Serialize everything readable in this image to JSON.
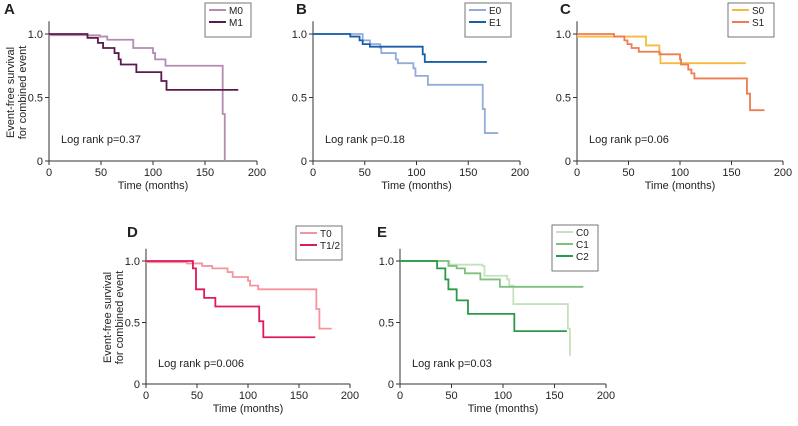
{
  "chart_data": [
    {
      "type": "line",
      "panel": "A",
      "xlabel": "Time (months)",
      "ylabel": [
        "Event-free survival",
        "for combined event"
      ],
      "xlim": [
        0,
        200
      ],
      "ylim": [
        0,
        1.1
      ],
      "xticks": [
        "0",
        "50",
        "100",
        "150",
        "200"
      ],
      "yticks": [
        "0",
        "0.5",
        "1.0"
      ],
      "annotation": "Log rank p=0.37",
      "legend_position": "top-right",
      "series": [
        {
          "name": "M0",
          "color": "#b38cb1",
          "points": [
            [
              0,
              0.99
            ],
            [
              49,
              0.98
            ],
            [
              56,
              0.955
            ],
            [
              81,
              0.89
            ],
            [
              100,
              0.85
            ],
            [
              102,
              0.8
            ],
            [
              112,
              0.75
            ],
            [
              167,
              0.37
            ],
            [
              169,
              0
            ]
          ]
        },
        {
          "name": "M1",
          "color": "#5b1a4c",
          "points": [
            [
              0,
              1.0
            ],
            [
              37,
              0.97
            ],
            [
              47,
              0.93
            ],
            [
              52,
              0.89
            ],
            [
              63,
              0.85
            ],
            [
              67,
              0.8
            ],
            [
              69,
              0.76
            ],
            [
              84,
              0.7
            ],
            [
              108,
              0.63
            ],
            [
              113,
              0.56
            ],
            [
              182,
              0.56
            ]
          ]
        }
      ]
    },
    {
      "type": "line",
      "panel": "B",
      "xlabel": "Time (months)",
      "xlim": [
        0,
        200
      ],
      "ylim": [
        0,
        1.1
      ],
      "xticks": [
        "0",
        "50",
        "100",
        "150",
        "200"
      ],
      "yticks": [
        "0",
        "0.5",
        "1.0"
      ],
      "annotation": "Log rank p=0.18",
      "legend_position": "top-right",
      "series": [
        {
          "name": "E0",
          "color": "#93abdb",
          "points": [
            [
              0,
              1.0
            ],
            [
              48,
              0.95
            ],
            [
              55,
              0.92
            ],
            [
              65,
              0.89
            ],
            [
              66,
              0.85
            ],
            [
              80,
              0.8
            ],
            [
              82,
              0.77
            ],
            [
              97,
              0.73
            ],
            [
              99,
              0.67
            ],
            [
              111,
              0.6
            ],
            [
              164,
              0.41
            ],
            [
              166,
              0.22
            ],
            [
              179,
              0.22
            ]
          ]
        },
        {
          "name": "E1",
          "color": "#1b5ea8",
          "points": [
            [
              0,
              1.0
            ],
            [
              36,
              0.98
            ],
            [
              45,
              0.95
            ],
            [
              48,
              0.92
            ],
            [
              55,
              0.9
            ],
            [
              106,
              0.84
            ],
            [
              108,
              0.78
            ],
            [
              168,
              0.78
            ]
          ]
        }
      ]
    },
    {
      "type": "line",
      "panel": "C",
      "xlabel": "Time (months)",
      "xlim": [
        0,
        200
      ],
      "ylim": [
        0,
        1.1
      ],
      "xticks": [
        "0",
        "50",
        "100",
        "150",
        "200"
      ],
      "yticks": [
        "0",
        "0.5",
        "1.0"
      ],
      "annotation": "Log rank p=0.06",
      "legend_position": "top-right",
      "series": [
        {
          "name": "S0",
          "color": "#f6ba3e",
          "points": [
            [
              0,
              0.98
            ],
            [
              67,
              0.91
            ],
            [
              80,
              0.85
            ],
            [
              81,
              0.77
            ],
            [
              164,
              0.77
            ]
          ]
        },
        {
          "name": "S1",
          "color": "#ef7b52",
          "points": [
            [
              0,
              1.0
            ],
            [
              36,
              0.98
            ],
            [
              46,
              0.95
            ],
            [
              49,
              0.92
            ],
            [
              53,
              0.89
            ],
            [
              60,
              0.86
            ],
            [
              80,
              0.84
            ],
            [
              100,
              0.8
            ],
            [
              101,
              0.76
            ],
            [
              108,
              0.72
            ],
            [
              111,
              0.69
            ],
            [
              114,
              0.65
            ],
            [
              165,
              0.53
            ],
            [
              168,
              0.4
            ],
            [
              182,
              0.4
            ]
          ]
        }
      ]
    },
    {
      "type": "line",
      "panel": "D",
      "xlabel": "Time (months)",
      "ylabel": [
        "Event-free survival",
        "for combined event"
      ],
      "xlim": [
        0,
        200
      ],
      "ylim": [
        0,
        1.1
      ],
      "xticks": [
        "0",
        "50",
        "100",
        "150",
        "200"
      ],
      "yticks": [
        "0",
        "0.5",
        "1.0"
      ],
      "annotation": "Log rank p=0.006",
      "legend_position": "top-right",
      "series": [
        {
          "name": "T0",
          "color": "#f4959c",
          "points": [
            [
              0,
              0.99
            ],
            [
              40,
              0.98
            ],
            [
              55,
              0.96
            ],
            [
              65,
              0.94
            ],
            [
              80,
              0.91
            ],
            [
              85,
              0.87
            ],
            [
              100,
              0.84
            ],
            [
              102,
              0.8
            ],
            [
              110,
              0.77
            ],
            [
              167,
              0.61
            ],
            [
              170,
              0.45
            ],
            [
              182,
              0.45
            ]
          ]
        },
        {
          "name": "T1/2",
          "color": "#e0195b",
          "points": [
            [
              0,
              1.0
            ],
            [
              46,
              0.94
            ],
            [
              49,
              0.77
            ],
            [
              57,
              0.7
            ],
            [
              68,
              0.63
            ],
            [
              111,
              0.51
            ],
            [
              115,
              0.38
            ],
            [
              166,
              0.38
            ]
          ]
        }
      ]
    },
    {
      "type": "line",
      "panel": "E",
      "xlabel": "Time (months)",
      "xlim": [
        0,
        200
      ],
      "ylim": [
        0,
        1.1
      ],
      "xticks": [
        "0",
        "50",
        "100",
        "150",
        "200"
      ],
      "yticks": [
        "0",
        "0.5",
        "1.0"
      ],
      "annotation": "Log rank p=0.03",
      "legend_position": "top-right",
      "series": [
        {
          "name": "C0",
          "color": "#c5e2bd",
          "points": [
            [
              0,
              1.0
            ],
            [
              48,
              0.97
            ],
            [
              80,
              0.96
            ],
            [
              82,
              0.88
            ],
            [
              104,
              0.85
            ],
            [
              106,
              0.8
            ],
            [
              110,
              0.65
            ],
            [
              163,
              0.45
            ],
            [
              165,
              0.23
            ]
          ]
        },
        {
          "name": "C1",
          "color": "#7fc07f",
          "points": [
            [
              0,
              1.0
            ],
            [
              47,
              0.96
            ],
            [
              55,
              0.94
            ],
            [
              63,
              0.9
            ],
            [
              78,
              0.85
            ],
            [
              97,
              0.79
            ],
            [
              178,
              0.79
            ]
          ]
        },
        {
          "name": "C2",
          "color": "#2a9a4a",
          "points": [
            [
              0,
              1.0
            ],
            [
              36,
              0.94
            ],
            [
              44,
              0.85
            ],
            [
              47,
              0.77
            ],
            [
              55,
              0.68
            ],
            [
              66,
              0.57
            ],
            [
              111,
              0.43
            ],
            [
              162,
              0.43
            ]
          ]
        }
      ]
    }
  ]
}
